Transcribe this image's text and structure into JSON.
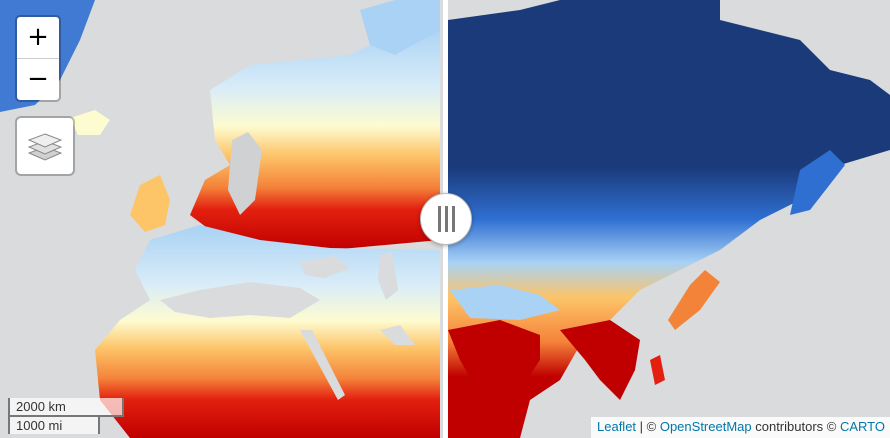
{
  "map": {
    "zoom_in_label": "+",
    "zoom_out_label": "−",
    "scale_km": "2000 km",
    "scale_mi": "1000 mi"
  },
  "attribution": {
    "leaflet": "Leaflet",
    "separator": " | © ",
    "osm": "OpenStreetMap",
    "contributors": " contributors © ",
    "carto": "CARTO"
  },
  "colors": {
    "water": "#d9dbdd",
    "land_grey": "#cfd1d3",
    "cold_deep": "#1b3a7a",
    "cold_mid": "#2f6fd1",
    "cold_light": "#a9d2f4",
    "pale": "#fdfbd0",
    "warm_light": "#fdc468",
    "warm_mid": "#f4833a",
    "hot": "#e3200f",
    "hottest": "#c00000"
  }
}
